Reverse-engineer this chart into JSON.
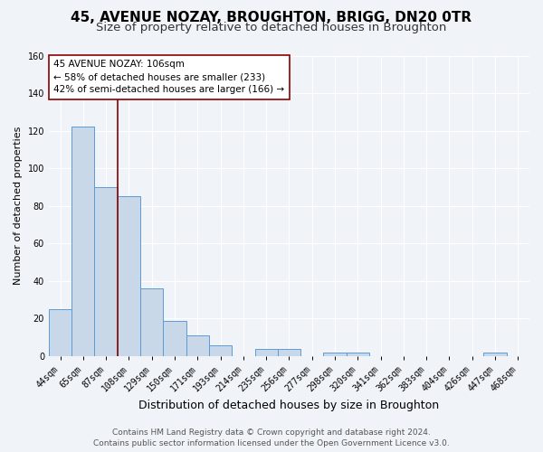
{
  "title": "45, AVENUE NOZAY, BROUGHTON, BRIGG, DN20 0TR",
  "subtitle": "Size of property relative to detached houses in Broughton",
  "xlabel": "Distribution of detached houses by size in Broughton",
  "ylabel": "Number of detached properties",
  "footer_line1": "Contains HM Land Registry data © Crown copyright and database right 2024.",
  "footer_line2": "Contains public sector information licensed under the Open Government Licence v3.0.",
  "bin_labels": [
    "44sqm",
    "65sqm",
    "87sqm",
    "108sqm",
    "129sqm",
    "150sqm",
    "171sqm",
    "193sqm",
    "214sqm",
    "235sqm",
    "256sqm",
    "277sqm",
    "298sqm",
    "320sqm",
    "341sqm",
    "362sqm",
    "383sqm",
    "404sqm",
    "426sqm",
    "447sqm",
    "468sqm"
  ],
  "bin_values": [
    25,
    122,
    90,
    85,
    36,
    19,
    11,
    6,
    0,
    4,
    4,
    0,
    2,
    2,
    0,
    0,
    0,
    0,
    0,
    2,
    0
  ],
  "bar_color": "#c8d8e8",
  "bar_edge_color": "#5b9bd5",
  "vline_x_index": 2.5,
  "vline_color": "#8b0000",
  "annotation_line1": "45 AVENUE NOZAY: 106sqm",
  "annotation_line2": "← 58% of detached houses are smaller (233)",
  "annotation_line3": "42% of semi-detached houses are larger (166) →",
  "annotation_box_color": "white",
  "annotation_box_edge_color": "#8b0000",
  "ylim": [
    0,
    160
  ],
  "yticks": [
    0,
    20,
    40,
    60,
    80,
    100,
    120,
    140,
    160
  ],
  "bg_color": "#f0f4f8",
  "grid_color": "white",
  "title_fontsize": 11,
  "subtitle_fontsize": 9.5,
  "xlabel_fontsize": 9,
  "ylabel_fontsize": 8,
  "tick_fontsize": 7,
  "annotation_fontsize": 7.5,
  "footer_fontsize": 6.5
}
